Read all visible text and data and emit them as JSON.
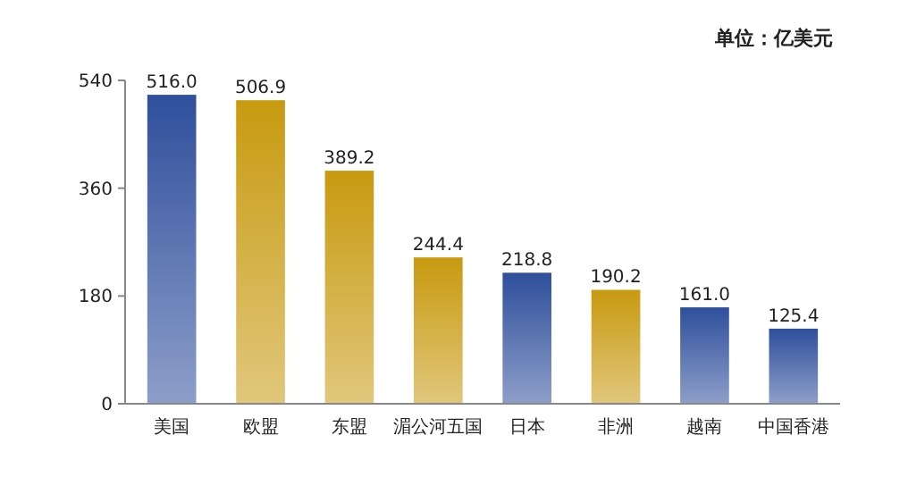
{
  "chart_data": {
    "type": "bar",
    "categories": [
      "美国",
      "欧盟",
      "东盟",
      "湄公河五国",
      "日本",
      "非洲",
      "越南",
      "中国香港"
    ],
    "values": [
      516.0,
      506.9,
      389.2,
      244.4,
      218.8,
      190.2,
      161.0,
      125.4
    ],
    "value_labels": [
      "516.0",
      "506.9",
      "389.2",
      "244.4",
      "218.8",
      "190.2",
      "161.0",
      "125.4"
    ],
    "colors": [
      "#2f4f9c",
      "#c89a10",
      "#c89a10",
      "#c89a10",
      "#2f4f9c",
      "#c89a10",
      "#2f4f9c",
      "#2f4f9c"
    ],
    "ylim": [
      0,
      540
    ],
    "yticks": [
      0,
      180,
      360,
      540
    ],
    "annotations": [
      "单位：亿美元"
    ]
  }
}
